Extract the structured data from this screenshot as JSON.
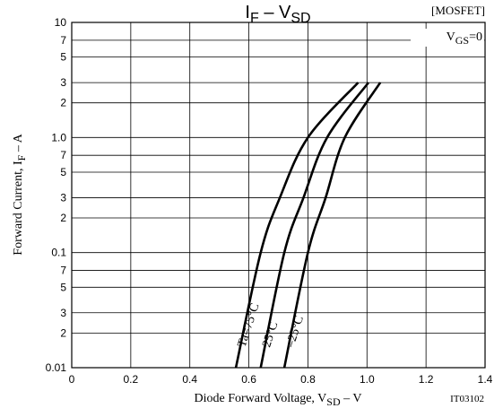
{
  "chart_data": {
    "type": "line",
    "title": [
      "I",
      "F",
      " – V",
      "SD"
    ],
    "note": "[MOSFET]",
    "condition": [
      "V",
      "GS",
      "=0"
    ],
    "code": "IT03102",
    "xlabel": [
      "Diode Forward Voltage, V",
      "SD",
      " – V"
    ],
    "ylabel": [
      "Forward Current, I",
      "F",
      " – A"
    ],
    "log_y": true,
    "grid": true,
    "xlim": [
      0,
      1.4
    ],
    "ylim": [
      0.01,
      10
    ],
    "xticks": [
      0,
      0.2,
      0.4,
      0.6,
      0.8,
      {
        "value": 1.0,
        "label": "1.0"
      },
      1.2,
      1.4
    ],
    "yticks": [
      10,
      7,
      5,
      3,
      2,
      {
        "value": 1,
        "label": "1.0"
      },
      {
        "value": 0.7,
        "label": "7"
      },
      {
        "value": 0.5,
        "label": "5"
      },
      {
        "value": 0.3,
        "label": "3"
      },
      {
        "value": 0.2,
        "label": "2"
      },
      0.1,
      {
        "value": 0.07,
        "label": "7"
      },
      {
        "value": 0.05,
        "label": "5"
      },
      {
        "value": 0.03,
        "label": "3"
      },
      {
        "value": 0.02,
        "label": "2"
      },
      0.01
    ],
    "series": [
      {
        "name": "Ta=75°C",
        "color": "#000000",
        "x": [
          0.556,
          0.64,
          0.705,
          0.8,
          0.97
        ],
        "values": [
          0.01,
          0.1,
          0.3,
          1,
          3
        ]
      },
      {
        "name": "25°C",
        "color": "#000000",
        "x": [
          0.64,
          0.72,
          0.785,
          0.865,
          1.005
        ],
        "values": [
          0.01,
          0.1,
          0.3,
          1,
          3
        ]
      },
      {
        "name": "–25°C",
        "color": "#000000",
        "x": [
          0.72,
          0.8,
          0.86,
          0.925,
          1.045
        ],
        "values": [
          0.01,
          0.1,
          0.3,
          1,
          3
        ]
      }
    ]
  }
}
